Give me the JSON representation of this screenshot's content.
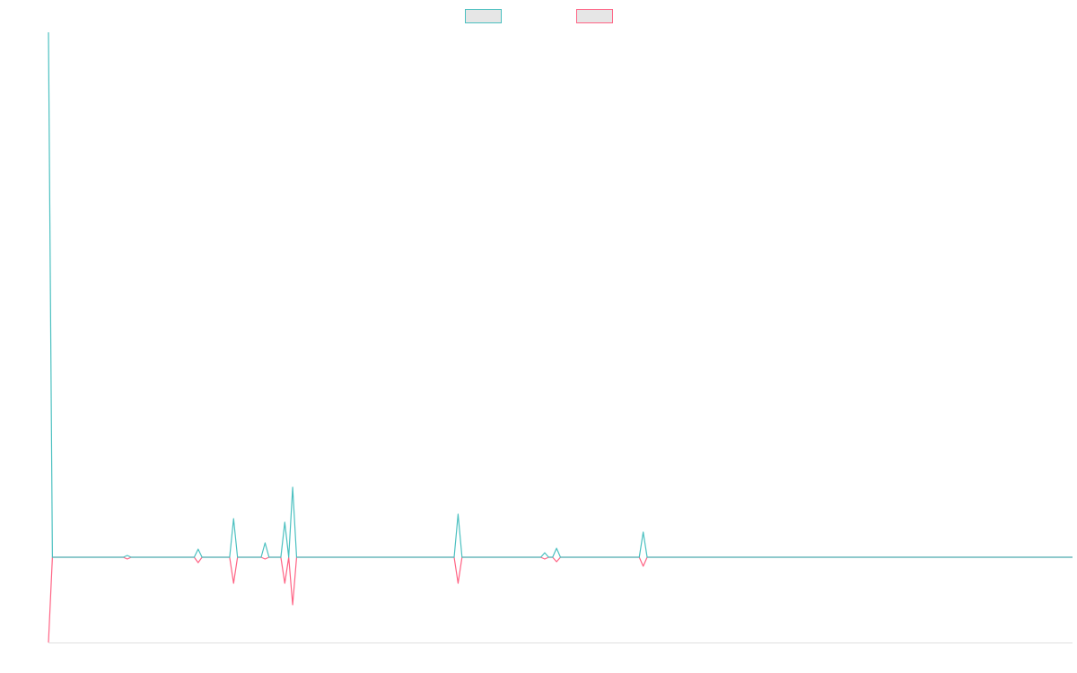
{
  "chart_data": {
    "type": "line",
    "x": [
      0,
      1,
      19,
      20,
      21,
      37,
      38,
      39,
      46,
      47,
      48,
      54,
      55,
      56,
      59,
      60,
      61,
      62,
      63,
      103,
      104,
      105,
      125,
      126,
      127,
      128,
      129,
      130,
      150,
      151,
      152,
      260
    ],
    "series": [
      {
        "color": "#4bc0c0",
        "values": [
          585,
          0,
          0,
          2,
          0,
          0,
          9,
          0,
          0,
          43,
          0,
          0,
          16,
          0,
          0,
          39,
          0,
          78,
          0,
          0,
          48,
          0,
          0,
          5,
          0,
          0,
          10,
          0,
          0,
          28,
          0,
          0
        ]
      },
      {
        "color": "#ff6384",
        "values": [
          -95,
          0,
          0,
          -2,
          0,
          0,
          -6,
          0,
          0,
          -29,
          0,
          0,
          -2,
          0,
          0,
          -29,
          0,
          -53,
          0,
          0,
          -29,
          0,
          0,
          -2,
          0,
          0,
          -5,
          0,
          0,
          -10,
          0,
          0
        ]
      }
    ],
    "xlim": [
      0,
      260
    ],
    "ylim": [
      -95,
      585
    ],
    "legend": "top"
  }
}
